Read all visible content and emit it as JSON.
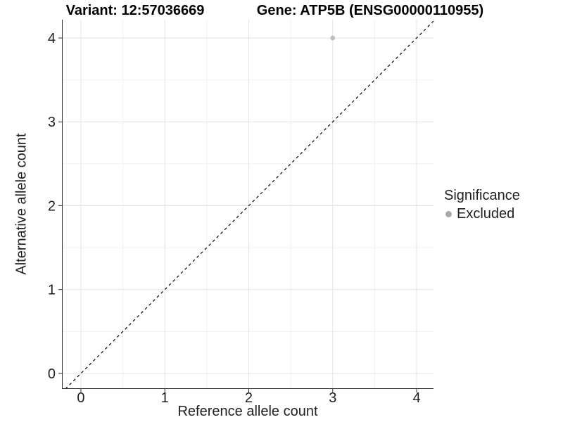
{
  "chart_data": {
    "type": "scatter",
    "title_left": "Variant: 12:57036669",
    "title_right": "Gene: ATP5B (ENSG00000110955)",
    "xlabel": "Reference allele count",
    "ylabel": "Alternative allele count",
    "xlim": [
      -0.226,
      4.201
    ],
    "ylim": [
      -0.185,
      4.218
    ],
    "xticks": [
      0,
      1,
      2,
      3,
      4
    ],
    "yticks": [
      0,
      1,
      2,
      3,
      4
    ],
    "x_minor_breaks": [
      0.5,
      1.5,
      2.5,
      3.5
    ],
    "y_minor_breaks": [
      0.5,
      1.5,
      2.5,
      3.5
    ],
    "grid": "major+minor",
    "reference_line": {
      "type": "identity y=x",
      "style": "dashed",
      "color": "#000000"
    },
    "series": [
      {
        "name": "Excluded",
        "color": "#bdbdbd",
        "points": [
          {
            "x": 3,
            "y": 4
          }
        ]
      }
    ],
    "legend": {
      "title": "Significance",
      "position": "right",
      "items": [
        {
          "label": "Excluded",
          "color": "#a9a9a9"
        }
      ]
    },
    "colors": {
      "background": "#ffffff",
      "grid_major": "#e3e3e3",
      "grid_minor": "#f1f1f1",
      "axis_line": "#2f2f2f",
      "tick_text": "#1f1f1f",
      "title_text": "#000000"
    }
  }
}
